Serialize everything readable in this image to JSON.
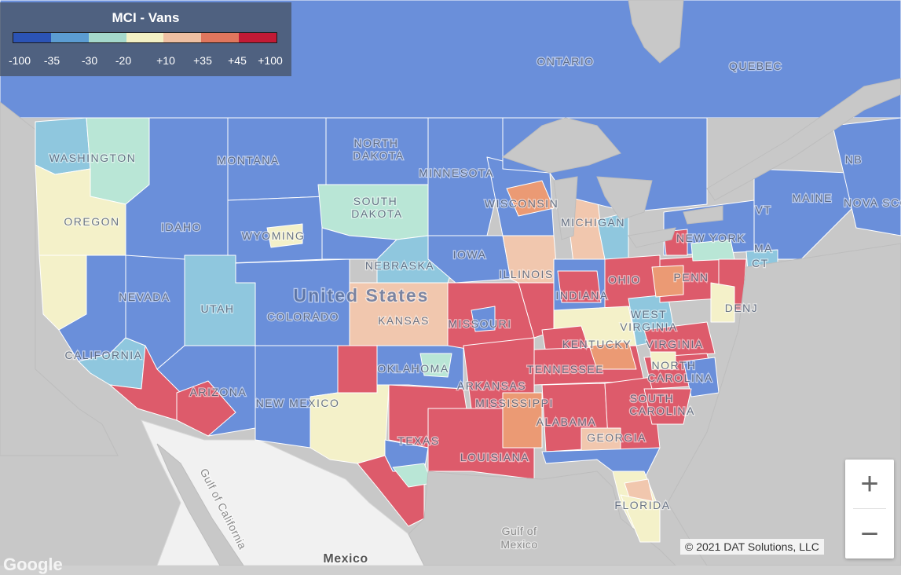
{
  "legend": {
    "title": "MCI - Vans",
    "colors": [
      "#2b53b5",
      "#5b9cd2",
      "#a5d8cb",
      "#f3f0c4",
      "#eebfa2",
      "#e0765d",
      "#c21a35"
    ],
    "ticks": [
      "-100",
      "-35",
      "-30",
      "-20",
      "+10",
      "+35",
      "+45",
      "+100"
    ]
  },
  "palette": {
    "cold": "#6a8fda",
    "cool": "#8fc7de",
    "mint": "#b9e6d6",
    "neutral": "#f4f1c9",
    "warm_light": "#f1c7ae",
    "warm": "#eb9a74",
    "hot": "#dd5b6b",
    "water": "#c8c8c8",
    "mexico": "#f1f1f1"
  },
  "map_labels": {
    "ontario": "ONTARIO",
    "quebec": "QUEBEC",
    "nb": "NB",
    "nova_scotia": "NOVA SCO",
    "maine": "MAINE",
    "washington": "WASHINGTON",
    "oregon": "OREGON",
    "california": "CALIFORNIA",
    "nevada": "NEVADA",
    "idaho": "IDAHO",
    "montana": "MONTANA",
    "wyoming": "WYOMING",
    "utah": "UTAH",
    "arizona": "ARIZONA",
    "colorado": "COLORADO",
    "new_mexico": "NEW MEXICO",
    "north_dakota_1": "NORTH",
    "north_dakota_2": "DAKOTA",
    "south_dakota_1": "SOUTH",
    "south_dakota_2": "DAKOTA",
    "nebraska": "NEBRASKA",
    "kansas": "KANSAS",
    "oklahoma": "OKLAHOMA",
    "texas": "TEXAS",
    "minnesota": "MINNESOTA",
    "iowa": "IOWA",
    "missouri": "MISSOURI",
    "arkansas": "ARKANSAS",
    "louisiana": "LOUISIANA",
    "mississippi": "MISSISSIPPI",
    "alabama": "ALABAMA",
    "georgia": "GEORGIA",
    "florida": "FLORIDA",
    "wisconsin": "WISCONSIN",
    "illinois": "ILLINOIS",
    "michigan": "MICHIGAN",
    "indiana": "INDIANA",
    "ohio": "OHIO",
    "kentucky": "KENTUCKY",
    "tennessee": "TENNESSEE",
    "west_virginia_1": "WEST",
    "west_virginia_2": "VIRGINIA",
    "virginia": "VIRGINIA",
    "north_carolina_1": "NORTH",
    "north_carolina_2": "CAROLINA",
    "south_carolina_1": "SOUTH",
    "south_carolina_2": "CAROLINA",
    "pennsylvania": "PENN",
    "new_york": "NEW YORK",
    "vermont_nh": "VT",
    "ma": "MA",
    "ct": "CT",
    "de_nj": "DENJ",
    "united_states": "United States",
    "mexico": "Mexico",
    "gulf_of_mexico_1": "Gulf of",
    "gulf_of_mexico_2": "Mexico",
    "gulf_of_california": "Gulf of California"
  },
  "zoom": {
    "in_label": "+",
    "out_label": "−"
  },
  "attribution": "© 2021 DAT Solutions, LLC",
  "google_logo": "Google"
}
